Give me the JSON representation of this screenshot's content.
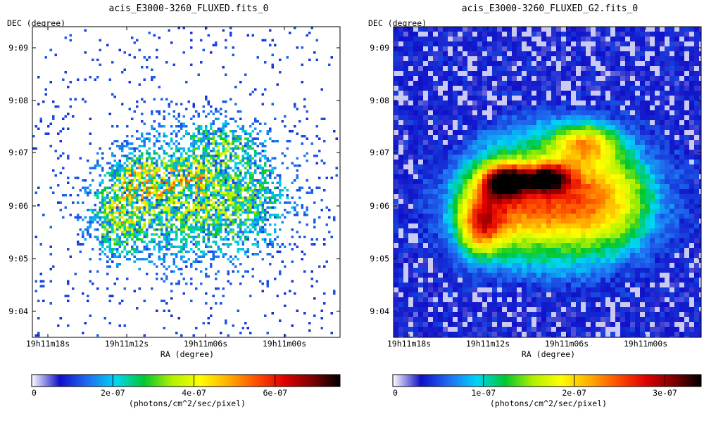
{
  "chart_data": [
    {
      "type": "heatmap",
      "title": "acis_E3000-3260_FLUXED.fits_0",
      "xlabel": "RA (degree)",
      "ylabel": "DEC (degree)",
      "x_ticks": [
        "19h11m18s",
        "19h11m12s",
        "19h11m06s",
        "19h11m00s"
      ],
      "y_ticks": [
        "9:09",
        "9:08",
        "9:07",
        "9:06",
        "9:05",
        "9:04"
      ],
      "colorbar": {
        "label": "(photons/cm^2/sec/pixel)",
        "ticks": [
          "0",
          "2e-07",
          "4e-07",
          "6e-07"
        ],
        "tick_values": [
          0,
          2e-07,
          4e-07,
          6e-07
        ],
        "max": 7.6e-07,
        "colors": [
          "#ffffff",
          "#1010c8",
          "#1f6df0",
          "#00d5f5",
          "#00c830",
          "#b0f000",
          "#ffff00",
          "#ffb000",
          "#ff5000",
          "#e00000",
          "#800000",
          "#000000"
        ]
      },
      "image_style": "sparse",
      "grid": false
    },
    {
      "type": "heatmap",
      "title": "acis_E3000-3260_FLUXED_G2.fits_0",
      "xlabel": "RA (degree)",
      "ylabel": "DEC (degree)",
      "x_ticks": [
        "19h11m18s",
        "19h11m12s",
        "19h11m06s",
        "19h11m00s"
      ],
      "y_ticks": [
        "9:09",
        "9:08",
        "9:07",
        "9:06",
        "9:05",
        "9:04"
      ],
      "colorbar": {
        "label": "(photons/cm^2/sec/pixel)",
        "ticks": [
          "0",
          "1e-07",
          "2e-07",
          "3e-07"
        ],
        "tick_values": [
          0,
          1e-07,
          2e-07,
          3e-07
        ],
        "max": 3.4e-07,
        "colors": [
          "#ffffff",
          "#1010c8",
          "#1f6df0",
          "#00d5f5",
          "#00c830",
          "#b0f000",
          "#ffff00",
          "#ffb000",
          "#ff5000",
          "#e00000",
          "#800000",
          "#000000"
        ]
      },
      "image_style": "smoothed",
      "grid": false
    }
  ]
}
